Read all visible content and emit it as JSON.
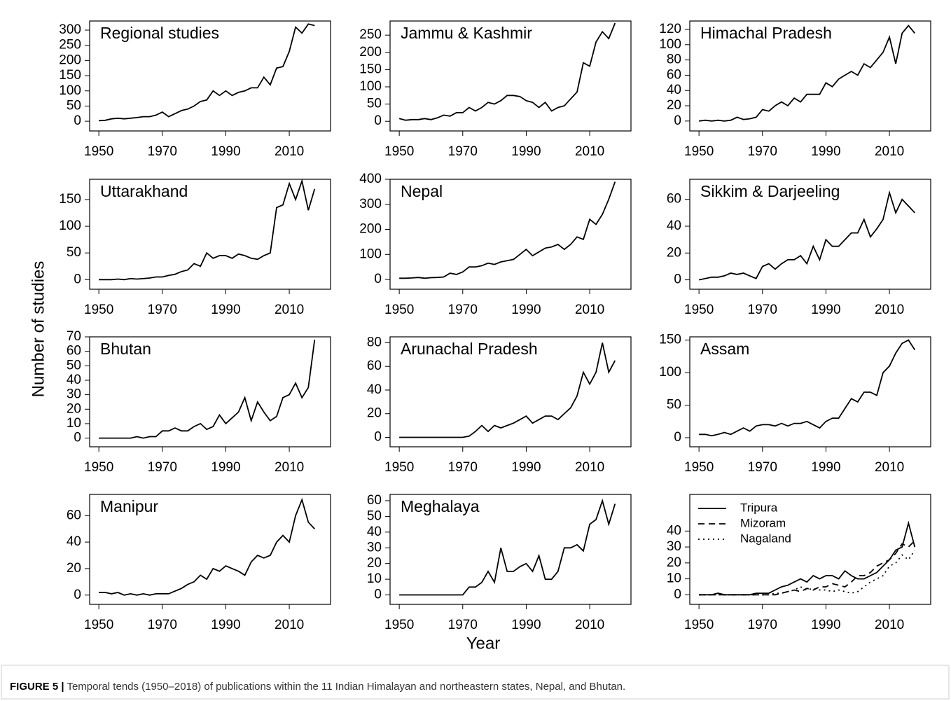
{
  "y_label": "Number of studies",
  "x_label": "Year",
  "caption_label": "FIGURE 5 |",
  "caption_text": " Temporal tends (1950–2018) of publications within the 11 Indian Himalayan and northeastern states, Nepal, and Bhutan.",
  "chart_data": [
    {
      "type": "line",
      "title": "Regional studies",
      "x": [
        1950,
        1952,
        1954,
        1956,
        1958,
        1960,
        1962,
        1964,
        1966,
        1968,
        1970,
        1972,
        1974,
        1976,
        1978,
        1980,
        1982,
        1984,
        1986,
        1988,
        1990,
        1992,
        1994,
        1996,
        1998,
        2000,
        2002,
        2004,
        2006,
        2008,
        2010,
        2012,
        2014,
        2016,
        2018
      ],
      "values": [
        2,
        3,
        8,
        10,
        8,
        10,
        12,
        15,
        15,
        20,
        30,
        15,
        25,
        35,
        40,
        50,
        65,
        70,
        100,
        85,
        100,
        85,
        95,
        100,
        110,
        110,
        145,
        120,
        175,
        180,
        230,
        310,
        290,
        320,
        315
      ],
      "color": "#000000",
      "xlim": [
        1947.1,
        2023
      ],
      "xticks": [
        1950,
        1970,
        1990,
        2010
      ],
      "ylim": [
        -32,
        330
      ],
      "yticks": [
        0,
        50,
        100,
        150,
        200,
        250,
        300
      ]
    },
    {
      "type": "line",
      "title": "Jammu & Kashmir",
      "x": [
        1950,
        1952,
        1954,
        1956,
        1958,
        1960,
        1962,
        1964,
        1966,
        1968,
        1970,
        1972,
        1974,
        1976,
        1978,
        1980,
        1982,
        1984,
        1986,
        1988,
        1990,
        1992,
        1994,
        1996,
        1998,
        2000,
        2002,
        2004,
        2006,
        2008,
        2010,
        2012,
        2014,
        2016,
        2018
      ],
      "values": [
        8,
        3,
        5,
        5,
        8,
        5,
        10,
        18,
        15,
        25,
        25,
        40,
        30,
        40,
        55,
        50,
        60,
        75,
        75,
        72,
        60,
        55,
        40,
        55,
        30,
        40,
        45,
        65,
        85,
        170,
        160,
        230,
        260,
        240,
        285
      ],
      "color": "#000000",
      "xlim": [
        1947.1,
        2023
      ],
      "xticks": [
        1950,
        1970,
        1990,
        2010
      ],
      "ylim": [
        -28,
        291
      ],
      "yticks": [
        0,
        50,
        100,
        150,
        200,
        250
      ]
    },
    {
      "type": "line",
      "title": "Himachal Pradesh",
      "x": [
        1950,
        1952,
        1954,
        1956,
        1958,
        1960,
        1962,
        1964,
        1966,
        1968,
        1970,
        1972,
        1974,
        1976,
        1978,
        1980,
        1982,
        1984,
        1986,
        1988,
        1990,
        1992,
        1994,
        1996,
        1998,
        2000,
        2002,
        2004,
        2006,
        2008,
        2010,
        2012,
        2014,
        2016,
        2018
      ],
      "values": [
        0,
        1,
        0,
        1,
        0,
        1,
        5,
        2,
        3,
        5,
        15,
        13,
        20,
        25,
        20,
        30,
        25,
        35,
        35,
        35,
        50,
        45,
        55,
        60,
        65,
        60,
        75,
        70,
        80,
        90,
        110,
        75,
        115,
        125,
        115
      ],
      "color": "#000000",
      "xlim": [
        1947.1,
        2023
      ],
      "xticks": [
        1950,
        1970,
        1990,
        2010
      ],
      "ylim": [
        -13,
        131
      ],
      "yticks": [
        0,
        20,
        40,
        60,
        80,
        100,
        120
      ]
    },
    {
      "type": "line",
      "title": "Uttarakhand",
      "x": [
        1950,
        1952,
        1954,
        1956,
        1958,
        1960,
        1962,
        1964,
        1966,
        1968,
        1970,
        1972,
        1974,
        1976,
        1978,
        1980,
        1982,
        1984,
        1986,
        1988,
        1990,
        1992,
        1994,
        1996,
        1998,
        2000,
        2002,
        2004,
        2006,
        2008,
        2010,
        2012,
        2014,
        2016,
        2018
      ],
      "values": [
        0,
        0,
        0,
        1,
        0,
        2,
        1,
        2,
        3,
        5,
        5,
        8,
        10,
        15,
        18,
        30,
        25,
        50,
        40,
        45,
        45,
        40,
        48,
        45,
        40,
        38,
        45,
        50,
        135,
        140,
        180,
        150,
        185,
        130,
        170
      ],
      "color": "#000000",
      "xlim": [
        1947.1,
        2023
      ],
      "xticks": [
        1950,
        1970,
        1990,
        2010
      ],
      "ylim": [
        -18,
        188
      ],
      "yticks": [
        0,
        50,
        100,
        150
      ]
    },
    {
      "type": "line",
      "title": "Nepal",
      "x": [
        1950,
        1952,
        1954,
        1956,
        1958,
        1960,
        1962,
        1964,
        1966,
        1968,
        1970,
        1972,
        1974,
        1976,
        1978,
        1980,
        1982,
        1984,
        1986,
        1988,
        1990,
        1992,
        1994,
        1996,
        1998,
        2000,
        2002,
        2004,
        2006,
        2008,
        2010,
        2012,
        2014,
        2016,
        2018
      ],
      "values": [
        5,
        5,
        6,
        8,
        5,
        7,
        8,
        10,
        25,
        20,
        30,
        50,
        50,
        55,
        65,
        60,
        70,
        75,
        80,
        100,
        120,
        95,
        110,
        125,
        130,
        140,
        120,
        140,
        170,
        160,
        240,
        220,
        260,
        320,
        390
      ],
      "color": "#000000",
      "xlim": [
        1947.1,
        2023
      ],
      "xticks": [
        1950,
        1970,
        1990,
        2010
      ],
      "ylim": [
        -39,
        400
      ],
      "yticks": [
        0,
        100,
        200,
        300,
        400
      ]
    },
    {
      "type": "line",
      "title": "Sikkim & Darjeeling",
      "x": [
        1950,
        1952,
        1954,
        1956,
        1958,
        1960,
        1962,
        1964,
        1966,
        1968,
        1970,
        1972,
        1974,
        1976,
        1978,
        1980,
        1982,
        1984,
        1986,
        1988,
        1990,
        1992,
        1994,
        1996,
        1998,
        2000,
        2002,
        2004,
        2006,
        2008,
        2010,
        2012,
        2014,
        2016,
        2018
      ],
      "values": [
        0,
        1,
        2,
        2,
        3,
        5,
        4,
        5,
        3,
        1,
        10,
        12,
        8,
        12,
        15,
        15,
        18,
        12,
        25,
        15,
        30,
        25,
        25,
        30,
        35,
        35,
        45,
        32,
        38,
        45,
        65,
        50,
        60,
        55,
        50
      ],
      "color": "#000000",
      "xlim": [
        1947.1,
        2023
      ],
      "xticks": [
        1950,
        1970,
        1990,
        2010
      ],
      "ylim": [
        -7,
        75
      ],
      "yticks": [
        0,
        20,
        40,
        60
      ]
    },
    {
      "type": "line",
      "title": "Bhutan",
      "x": [
        1950,
        1952,
        1954,
        1956,
        1958,
        1960,
        1962,
        1964,
        1966,
        1968,
        1970,
        1972,
        1974,
        1976,
        1978,
        1980,
        1982,
        1984,
        1986,
        1988,
        1990,
        1992,
        1994,
        1996,
        1998,
        2000,
        2002,
        2004,
        2006,
        2008,
        2010,
        2012,
        2014,
        2016,
        2018
      ],
      "values": [
        0,
        0,
        0,
        0,
        0,
        0,
        1,
        0,
        1,
        1,
        5,
        5,
        7,
        5,
        5,
        8,
        10,
        6,
        8,
        16,
        10,
        14,
        18,
        28,
        12,
        25,
        18,
        12,
        15,
        28,
        30,
        38,
        28,
        35,
        68
      ],
      "color": "#000000",
      "xlim": [
        1947.1,
        2023
      ],
      "xticks": [
        1950,
        1970,
        1990,
        2010
      ],
      "ylim": [
        -6,
        70
      ],
      "yticks": [
        0,
        10,
        20,
        30,
        40,
        50,
        60,
        70
      ]
    },
    {
      "type": "line",
      "title": "Arunachal Pradesh",
      "x": [
        1950,
        1952,
        1954,
        1956,
        1958,
        1960,
        1962,
        1964,
        1966,
        1968,
        1970,
        1972,
        1974,
        1976,
        1978,
        1980,
        1982,
        1984,
        1986,
        1988,
        1990,
        1992,
        1994,
        1996,
        1998,
        2000,
        2002,
        2004,
        2006,
        2008,
        2010,
        2012,
        2014,
        2016,
        2018
      ],
      "values": [
        0,
        0,
        0,
        0,
        0,
        0,
        0,
        0,
        0,
        0,
        0,
        1,
        5,
        10,
        5,
        10,
        8,
        10,
        12,
        15,
        18,
        12,
        15,
        18,
        18,
        15,
        20,
        25,
        35,
        55,
        45,
        55,
        80,
        55,
        65
      ],
      "color": "#000000",
      "xlim": [
        1947.1,
        2023
      ],
      "xticks": [
        1950,
        1970,
        1990,
        2010
      ],
      "ylim": [
        -8,
        85
      ],
      "yticks": [
        0,
        20,
        40,
        60,
        80
      ]
    },
    {
      "type": "line",
      "title": "Assam",
      "x": [
        1950,
        1952,
        1954,
        1956,
        1958,
        1960,
        1962,
        1964,
        1966,
        1968,
        1970,
        1972,
        1974,
        1976,
        1978,
        1980,
        1982,
        1984,
        1986,
        1988,
        1990,
        1992,
        1994,
        1996,
        1998,
        2000,
        2002,
        2004,
        2006,
        2008,
        2010,
        2012,
        2014,
        2016,
        2018
      ],
      "values": [
        5,
        5,
        3,
        5,
        8,
        5,
        10,
        15,
        10,
        18,
        20,
        20,
        18,
        22,
        18,
        22,
        22,
        25,
        20,
        15,
        25,
        30,
        30,
        45,
        60,
        55,
        70,
        70,
        65,
        100,
        110,
        130,
        145,
        150,
        135
      ],
      "color": "#000000",
      "xlim": [
        1947.1,
        2023
      ],
      "xticks": [
        1950,
        1970,
        1990,
        2010
      ],
      "ylim": [
        -14,
        155
      ],
      "yticks": [
        0,
        50,
        100,
        150
      ]
    },
    {
      "type": "line",
      "title": "Manipur",
      "x": [
        1950,
        1952,
        1954,
        1956,
        1958,
        1960,
        1962,
        1964,
        1966,
        1968,
        1970,
        1972,
        1974,
        1976,
        1978,
        1980,
        1982,
        1984,
        1986,
        1988,
        1990,
        1992,
        1994,
        1996,
        1998,
        2000,
        2002,
        2004,
        2006,
        2008,
        2010,
        2012,
        2014,
        2016,
        2018
      ],
      "values": [
        2,
        2,
        1,
        2,
        0,
        1,
        0,
        1,
        0,
        1,
        1,
        1,
        3,
        5,
        8,
        10,
        15,
        12,
        20,
        18,
        22,
        20,
        18,
        15,
        25,
        30,
        28,
        30,
        40,
        45,
        40,
        60,
        72,
        55,
        50
      ],
      "color": "#000000",
      "xlim": [
        1947.1,
        2023
      ],
      "xticks": [
        1950,
        1970,
        1990,
        2010
      ],
      "ylim": [
        -7,
        76
      ],
      "yticks": [
        0,
        20,
        40,
        60
      ]
    },
    {
      "type": "line",
      "title": "Meghalaya",
      "x": [
        1950,
        1952,
        1954,
        1956,
        1958,
        1960,
        1962,
        1964,
        1966,
        1968,
        1970,
        1972,
        1974,
        1976,
        1978,
        1980,
        1982,
        1984,
        1986,
        1988,
        1990,
        1992,
        1994,
        1996,
        1998,
        2000,
        2002,
        2004,
        2006,
        2008,
        2010,
        2012,
        2014,
        2016,
        2018
      ],
      "values": [
        0,
        0,
        0,
        0,
        0,
        0,
        0,
        0,
        0,
        0,
        0,
        5,
        5,
        8,
        15,
        8,
        30,
        15,
        15,
        18,
        20,
        15,
        25,
        10,
        10,
        15,
        30,
        30,
        32,
        28,
        45,
        48,
        60,
        45,
        58
      ],
      "color": "#000000",
      "xlim": [
        1947.1,
        2023
      ],
      "xticks": [
        1950,
        1970,
        1990,
        2010
      ],
      "ylim": [
        -6,
        64
      ],
      "yticks": [
        0,
        10,
        20,
        30,
        40,
        50,
        60
      ]
    },
    {
      "type": "line",
      "legend": "top-left",
      "x": [
        1950,
        1952,
        1954,
        1956,
        1958,
        1960,
        1962,
        1964,
        1966,
        1968,
        1970,
        1972,
        1974,
        1976,
        1978,
        1980,
        1982,
        1984,
        1986,
        1988,
        1990,
        1992,
        1994,
        1996,
        1998,
        2000,
        2002,
        2004,
        2006,
        2008,
        2010,
        2012,
        2014,
        2016,
        2018
      ],
      "series": [
        {
          "name": "Tripura",
          "color": "#000000",
          "dash": "solid",
          "values": [
            0,
            0,
            0,
            1,
            0,
            0,
            0,
            0,
            0,
            1,
            1,
            1,
            3,
            5,
            6,
            8,
            10,
            8,
            12,
            10,
            12,
            12,
            10,
            15,
            12,
            10,
            10,
            12,
            14,
            18,
            22,
            28,
            30,
            45,
            30
          ]
        },
        {
          "name": "Mizoram",
          "color": "#000000",
          "dash": "dashed",
          "values": [
            0,
            0,
            0,
            0,
            0,
            0,
            0,
            0,
            0,
            0,
            0,
            0,
            0,
            1,
            2,
            3,
            2,
            4,
            3,
            5,
            5,
            7,
            6,
            5,
            8,
            12,
            12,
            14,
            18,
            20,
            22,
            26,
            32,
            30,
            34
          ]
        },
        {
          "name": "Nagaland",
          "color": "#000000",
          "dash": "dotted",
          "values": [
            0,
            0,
            0,
            0,
            0,
            0,
            0,
            0,
            0,
            0,
            0,
            0,
            1,
            1,
            2,
            3,
            5,
            3,
            4,
            3,
            3,
            2,
            3,
            2,
            1,
            2,
            5,
            8,
            10,
            12,
            18,
            20,
            25,
            22,
            28
          ]
        }
      ],
      "xlim": [
        1947.1,
        2023
      ],
      "xticks": [
        1950,
        1970,
        1990,
        2010
      ],
      "ylim": [
        -6,
        63
      ],
      "yticks": [
        0,
        10,
        20,
        30,
        40
      ]
    }
  ]
}
